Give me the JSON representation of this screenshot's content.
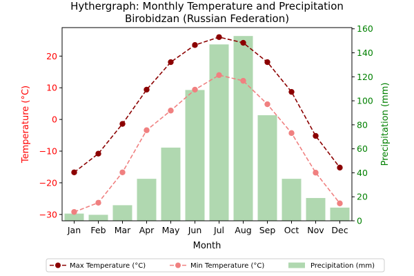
{
  "chart_data": {
    "type": "line",
    "title": "Hythergraph: Monthly Temperature and Precipitation",
    "subtitle": "Birobidzan (Russian Federation)",
    "xlabel": "Month",
    "ylabel_left": "Temperature (°C)",
    "ylabel_right": "Precipitation (mm)",
    "categories": [
      "Jan",
      "Feb",
      "Mar",
      "Apr",
      "May",
      "Jun",
      "Jul",
      "Aug",
      "Sep",
      "Oct",
      "Nov",
      "Dec"
    ],
    "ylim_left": [
      -32,
      29
    ],
    "yticks_left": [
      -30,
      -20,
      -10,
      0,
      10,
      20
    ],
    "ylim_right": [
      0,
      161
    ],
    "yticks_right": [
      0,
      20,
      40,
      60,
      80,
      100,
      120,
      140,
      160
    ],
    "grid": false,
    "legend_position": "bottom-center",
    "series": [
      {
        "name": "Max Temperature (°C)",
        "type": "line",
        "axis": "left",
        "color": "#8b0000",
        "dashed": true,
        "values": [
          -16.7,
          -10.8,
          -1.4,
          9.4,
          18.1,
          23.5,
          26.0,
          24.2,
          18.1,
          8.7,
          -5.2,
          -15.2
        ]
      },
      {
        "name": "Min Temperature (°C)",
        "type": "line",
        "axis": "left",
        "color": "#f08080",
        "dashed": true,
        "values": [
          -29.2,
          -26.3,
          -16.7,
          -3.4,
          2.8,
          9.4,
          14.0,
          12.2,
          4.8,
          -4.3,
          -16.8,
          -26.5
        ]
      },
      {
        "name": "Precipitation (mm)",
        "type": "bar",
        "axis": "right",
        "color": "#b0d8b0",
        "values": [
          6,
          5,
          13,
          35,
          61,
          109,
          147,
          154,
          88,
          35,
          19,
          11
        ]
      }
    ]
  }
}
